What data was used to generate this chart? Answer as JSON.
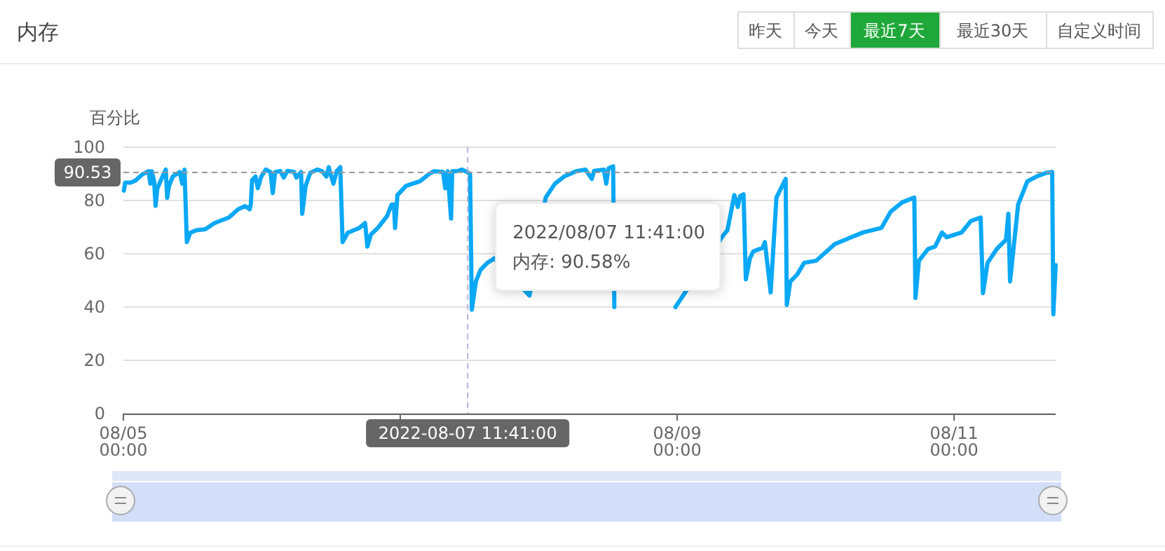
{
  "chart_data": {
    "type": "line",
    "title": "内存",
    "ylabel": "百分比",
    "annotations": [
      "昨天",
      "今天",
      "最近7天",
      "最近30天",
      "自定义时间",
      "2022/08/07 11:41:00\n内存: 90.58%"
    ],
    "xlim": [
      "2022-08-05T00:00",
      "2022-08-11T17:36"
    ],
    "xticks": [
      {
        "value": "2022-08-05T00:00",
        "label": "08/05\n00:00"
      },
      {
        "value": "2022-08-07T00:00",
        "label": null
      },
      {
        "value": "2022-08-09T00:00",
        "label": "08/09\n00:00"
      },
      {
        "value": "2022-08-11T00:00",
        "label": "08/11\n00:00"
      }
    ],
    "ylim": [
      0,
      100
    ],
    "yticks": [
      0,
      20,
      40,
      60,
      80,
      100
    ],
    "grid": "y",
    "marker": "none",
    "line_style": "solid",
    "ref_lines": [
      {
        "axis": "x",
        "value": "2022-08-07T11:41",
        "label": "2022-08-07 11:41:00",
        "line_style": "dashed",
        "color": "#b8b0d8"
      },
      {
        "axis": "y",
        "value": 90.53,
        "label": "90.53",
        "line_style": "dashed",
        "color": "#999999"
      }
    ],
    "series": [
      {
        "color": "#0aa8f5",
        "x": [
          "2022-08-05T00:05",
          "2022-08-05T00:19",
          "2022-08-05T01:17",
          "2022-08-05T02:06",
          "2022-08-05T03:18",
          "2022-08-05T04:22",
          "2022-08-05T04:41",
          "2022-08-05T04:56",
          "2022-08-05T05:20",
          "2022-08-05T05:35",
          "2022-08-05T05:54",
          "2022-08-05T06:57",
          "2022-08-05T07:21",
          "2022-08-05T07:36",
          "2022-08-05T07:54",
          "2022-08-05T08:34",
          "2022-08-05T09:47",
          "2022-08-05T10:12",
          "2022-08-05T10:36",
          "2022-08-05T11:00",
          "2022-08-05T11:36",
          "2022-08-05T12:36",
          "2022-08-05T14:12",
          "2022-08-05T15:48",
          "2022-08-05T18:18",
          "2022-08-05T19:54",
          "2022-08-05T21:06",
          "2022-08-05T21:54",
          "2022-08-05T22:06",
          "2022-08-05T22:18",
          "2022-08-05T22:54",
          "2022-08-05T23:18",
          "2022-08-05T23:54",
          "2022-08-06T00:42",
          "2022-08-06T01:30",
          "2022-08-06T01:54",
          "2022-08-06T02:18",
          "2022-08-06T03:12",
          "2022-08-06T03:48",
          "2022-08-06T04:24",
          "2022-08-06T05:36",
          "2022-08-06T06:00",
          "2022-08-06T06:48",
          "2022-08-06T07:00",
          "2022-08-06T07:36",
          "2022-08-06T08:24",
          "2022-08-06T09:36",
          "2022-08-06T10:24",
          "2022-08-06T11:12",
          "2022-08-06T11:36",
          "2022-08-06T12:24",
          "2022-08-06T13:00",
          "2022-08-06T13:36",
          "2022-08-06T14:00",
          "2022-08-06T14:54",
          "2022-08-06T16:54",
          "2022-08-06T17:54",
          "2022-08-06T18:18",
          "2022-08-06T18:54",
          "2022-08-06T20:06",
          "2022-08-06T21:42",
          "2022-08-06T22:30",
          "2022-08-06T22:54",
          "2022-08-06T23:06",
          "2022-08-06T23:30",
          "2022-08-07T01:00",
          "2022-08-07T03:24",
          "2022-08-07T04:54",
          "2022-08-07T05:48",
          "2022-08-07T07:24",
          "2022-08-07T07:48",
          "2022-08-07T08:12",
          "2022-08-07T08:48",
          "2022-08-07T09:00",
          "2022-08-07T09:54",
          "2022-08-07T10:42",
          "2022-08-07T11:41",
          "2022-08-07T12:06",
          "2022-08-07T12:24",
          "2022-08-07T13:06",
          "2022-08-07T13:54",
          "2022-08-07T15:06",
          "2022-08-07T16:18",
          "2022-08-07T22:24",
          "2022-08-08T01:12",
          "2022-08-08T02:48",
          "2022-08-08T04:24",
          "2022-08-08T06:30",
          "2022-08-08T08:06",
          "2022-08-08T09:12",
          "2022-08-08T09:36",
          "2022-08-08T11:18",
          "2022-08-08T11:42",
          "2022-08-08T12:06",
          "2022-08-08T12:54",
          "2022-08-08T13:06",
          "2022-08-08T18:00",
          "2022-08-08T23:42",
          "2022-08-09T08:00",
          "2022-08-09T08:42",
          "2022-08-09T09:54",
          "2022-08-09T10:30",
          "2022-08-09T10:54",
          "2022-08-09T11:30",
          "2022-08-09T11:54",
          "2022-08-09T12:36",
          "2022-08-09T13:12",
          "2022-08-09T14:48",
          "2022-08-09T15:12",
          "2022-08-09T16:12",
          "2022-08-09T17:12",
          "2022-08-09T18:48",
          "2022-08-09T19:00",
          "2022-08-09T19:36",
          "2022-08-09T20:48",
          "2022-08-09T22:00",
          "2022-08-10T00:06",
          "2022-08-10T03:18",
          "2022-08-10T05:42",
          "2022-08-10T08:12",
          "2022-08-10T11:24",
          "2022-08-10T13:00",
          "2022-08-10T15:00",
          "2022-08-10T17:06",
          "2022-08-10T17:18",
          "2022-08-10T17:54",
          "2022-08-10T19:30",
          "2022-08-10T20:42",
          "2022-08-10T21:54",
          "2022-08-10T22:42",
          "2022-08-11T01:18",
          "2022-08-11T02:54",
          "2022-08-11T04:36",
          "2022-08-11T05:00",
          "2022-08-11T05:48",
          "2022-08-11T07:24",
          "2022-08-11T09:00",
          "2022-08-11T09:24",
          "2022-08-11T09:42",
          "2022-08-11T11:06",
          "2022-08-11T12:42",
          "2022-08-11T14:18",
          "2022-08-11T16:00",
          "2022-08-11T17:00",
          "2022-08-11T17:12",
          "2022-08-11T17:36"
        ],
        "values": [
          83.7,
          86.7,
          86.7,
          87.5,
          89.8,
          91.0,
          86.3,
          91.0,
          87.2,
          78.0,
          84.6,
          89.8,
          91.6,
          81.0,
          85.4,
          89.0,
          90.7,
          86.3,
          91.6,
          64.4,
          67.9,
          68.8,
          69.2,
          71.5,
          73.6,
          76.7,
          77.9,
          76.7,
          78.8,
          87.6,
          89.0,
          84.6,
          89.0,
          91.6,
          90.7,
          82.8,
          90.7,
          91.1,
          88.6,
          91.1,
          90.7,
          88.6,
          90.7,
          75.0,
          85.6,
          90.4,
          91.6,
          91.1,
          89.0,
          92.5,
          86.3,
          91.1,
          92.5,
          64.4,
          67.9,
          69.7,
          71.5,
          62.7,
          67.2,
          69.7,
          74.1,
          78.5,
          78.5,
          69.7,
          82.0,
          85.5,
          87.2,
          89.8,
          91.0,
          90.7,
          84.6,
          91.0,
          73.2,
          91.0,
          91.0,
          91.6,
          90.6,
          89.8,
          39.0,
          49.6,
          53.9,
          56.6,
          58.3,
          44.3,
          81.1,
          86.3,
          89.0,
          91.0,
          91.6,
          88.1,
          91.1,
          91.6,
          86.3,
          92.1,
          92.8,
          40.0,
          null,
          40.0,
          67.0,
          68.8,
          82.0,
          77.6,
          81.6,
          82.3,
          50.4,
          58.3,
          60.9,
          62.2,
          64.4,
          45.5,
          81.1,
          88.1,
          40.8,
          49.6,
          52.2,
          56.6,
          57.4,
          63.6,
          65.8,
          68.0,
          69.7,
          75.8,
          79.3,
          81.1,
          43.4,
          57.4,
          61.8,
          62.7,
          68.0,
          66.2,
          68.0,
          72.3,
          73.6,
          45.2,
          56.6,
          61.8,
          65.3,
          75.0,
          49.6,
          78.5,
          87.2,
          89.0,
          90.4,
          90.7,
          37.3,
          55.7
        ]
      }
    ]
  }
}
